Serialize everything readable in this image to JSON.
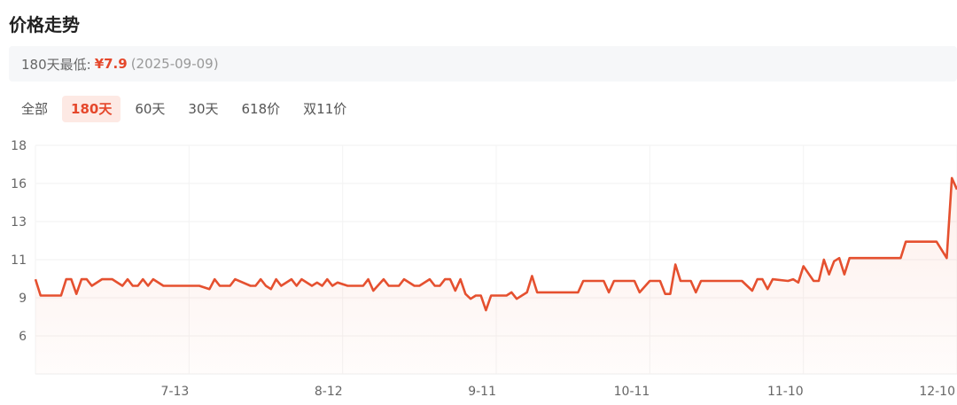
{
  "header": {
    "title": "价格走势"
  },
  "lowest": {
    "label": "180天最低:",
    "price": "¥7.9",
    "date": "(2025-09-09)"
  },
  "tabs": [
    {
      "label": "全部",
      "active": false
    },
    {
      "label": "180天",
      "active": true
    },
    {
      "label": "60天",
      "active": false
    },
    {
      "label": "30天",
      "active": false
    },
    {
      "label": "618价",
      "active": false
    },
    {
      "label": "双11价",
      "active": false
    }
  ],
  "colors": {
    "line": "#e5502f",
    "accent": "#e5472b",
    "active_tab_bg": "#fde9e4"
  },
  "chart_data": {
    "type": "area",
    "year": 2025,
    "title": "",
    "xlabel": "",
    "ylabel": "",
    "xlim": [
      "06-13",
      "12-10"
    ],
    "ylim": [
      4,
      18
    ],
    "yticks": [
      {
        "v": 18,
        "label": "18"
      },
      {
        "v": 15.67,
        "label": "16"
      },
      {
        "v": 13.33,
        "label": "13"
      },
      {
        "v": 11,
        "label": "11"
      },
      {
        "v": 8.67,
        "label": "9"
      },
      {
        "v": 6.33,
        "label": "6"
      }
    ],
    "xticks": [
      "7-13",
      "8-12",
      "9-11",
      "10-11",
      "11-10",
      "12-10"
    ],
    "grid": true,
    "series": [
      {
        "points": [
          [
            "06-13",
            9.8
          ],
          [
            "06-14",
            8.8
          ],
          [
            "06-18",
            8.8
          ],
          [
            "06-19",
            9.8
          ],
          [
            "06-20",
            9.8
          ],
          [
            "06-21",
            8.9
          ],
          [
            "06-22",
            9.8
          ],
          [
            "06-23",
            9.8
          ],
          [
            "06-24",
            9.4
          ],
          [
            "06-26",
            9.8
          ],
          [
            "06-28",
            9.8
          ],
          [
            "06-30",
            9.4
          ],
          [
            "07-01",
            9.8
          ],
          [
            "07-02",
            9.4
          ],
          [
            "07-03",
            9.4
          ],
          [
            "07-04",
            9.8
          ],
          [
            "07-05",
            9.4
          ],
          [
            "07-06",
            9.8
          ],
          [
            "07-08",
            9.4
          ],
          [
            "07-15",
            9.4
          ],
          [
            "07-17",
            9.2
          ],
          [
            "07-18",
            9.8
          ],
          [
            "07-19",
            9.4
          ],
          [
            "07-21",
            9.4
          ],
          [
            "07-22",
            9.8
          ],
          [
            "07-25",
            9.4
          ],
          [
            "07-26",
            9.4
          ],
          [
            "07-27",
            9.8
          ],
          [
            "07-28",
            9.4
          ],
          [
            "07-29",
            9.2
          ],
          [
            "07-30",
            9.8
          ],
          [
            "07-31",
            9.4
          ],
          [
            "08-02",
            9.8
          ],
          [
            "08-03",
            9.4
          ],
          [
            "08-04",
            9.8
          ],
          [
            "08-06",
            9.4
          ],
          [
            "08-07",
            9.6
          ],
          [
            "08-08",
            9.4
          ],
          [
            "08-09",
            9.8
          ],
          [
            "08-10",
            9.4
          ],
          [
            "08-11",
            9.6
          ],
          [
            "08-13",
            9.4
          ],
          [
            "08-16",
            9.4
          ],
          [
            "08-17",
            9.8
          ],
          [
            "08-18",
            9.1
          ],
          [
            "08-20",
            9.8
          ],
          [
            "08-21",
            9.4
          ],
          [
            "08-23",
            9.4
          ],
          [
            "08-24",
            9.8
          ],
          [
            "08-26",
            9.4
          ],
          [
            "08-27",
            9.4
          ],
          [
            "08-29",
            9.8
          ],
          [
            "08-30",
            9.4
          ],
          [
            "08-31",
            9.4
          ],
          [
            "09-01",
            9.8
          ],
          [
            "09-02",
            9.8
          ],
          [
            "09-03",
            9.1
          ],
          [
            "09-04",
            9.8
          ],
          [
            "09-05",
            8.9
          ],
          [
            "09-06",
            8.6
          ],
          [
            "09-07",
            8.8
          ],
          [
            "09-08",
            8.8
          ],
          [
            "09-09",
            7.9
          ],
          [
            "09-10",
            8.8
          ],
          [
            "09-13",
            8.8
          ],
          [
            "09-14",
            9.0
          ],
          [
            "09-15",
            8.6
          ],
          [
            "09-17",
            9.0
          ],
          [
            "09-18",
            10.0
          ],
          [
            "09-19",
            9.0
          ],
          [
            "09-27",
            9.0
          ],
          [
            "09-28",
            9.7
          ],
          [
            "10-02",
            9.7
          ],
          [
            "10-03",
            9.0
          ],
          [
            "10-04",
            9.7
          ],
          [
            "10-08",
            9.7
          ],
          [
            "10-09",
            9.0
          ],
          [
            "10-11",
            9.7
          ],
          [
            "10-13",
            9.7
          ],
          [
            "10-14",
            8.9
          ],
          [
            "10-15",
            8.9
          ],
          [
            "10-16",
            10.7
          ],
          [
            "10-17",
            9.7
          ],
          [
            "10-19",
            9.7
          ],
          [
            "10-20",
            9.0
          ],
          [
            "10-21",
            9.7
          ],
          [
            "10-24",
            9.7
          ],
          [
            "10-29",
            9.7
          ],
          [
            "10-31",
            9.1
          ],
          [
            "11-01",
            9.8
          ],
          [
            "11-02",
            9.8
          ],
          [
            "11-03",
            9.2
          ],
          [
            "11-04",
            9.8
          ],
          [
            "11-07",
            9.7
          ],
          [
            "11-08",
            9.8
          ],
          [
            "11-09",
            9.6
          ],
          [
            "11-10",
            10.6
          ],
          [
            "11-12",
            9.7
          ],
          [
            "11-13",
            9.7
          ],
          [
            "11-14",
            11.0
          ],
          [
            "11-15",
            10.1
          ],
          [
            "11-16",
            10.9
          ],
          [
            "11-17",
            11.1
          ],
          [
            "11-18",
            10.1
          ],
          [
            "11-19",
            11.1
          ],
          [
            "11-29",
            11.1
          ],
          [
            "11-30",
            12.1
          ],
          [
            "12-06",
            12.1
          ],
          [
            "12-08",
            11.1
          ],
          [
            "12-09",
            16.0
          ],
          [
            "12-10",
            15.3
          ]
        ]
      }
    ]
  }
}
